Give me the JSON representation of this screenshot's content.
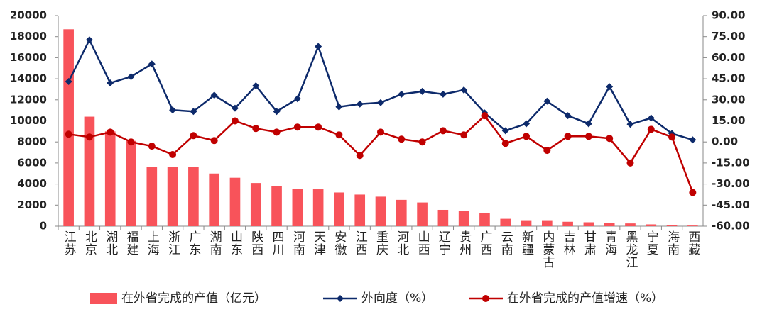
{
  "chart_data": {
    "type": "combo",
    "categories": [
      "江苏",
      "北京",
      "湖北",
      "福建",
      "上海",
      "浙江",
      "广东",
      "湖南",
      "山东",
      "陕西",
      "四川",
      "河南",
      "天津",
      "安徽",
      "江西",
      "重庆",
      "河北",
      "山西",
      "辽宁",
      "贵州",
      "广西",
      "云南",
      "新疆",
      "内蒙古",
      "吉林",
      "甘肃",
      "青海",
      "黑龙江",
      "宁夏",
      "海南",
      "西藏"
    ],
    "series": [
      {
        "name": "在外省完成的产值（亿元）",
        "type": "bar",
        "color": "#f8535a",
        "values": [
          18700,
          10400,
          9000,
          8100,
          5600,
          5600,
          5600,
          5000,
          4600,
          4100,
          3800,
          3550,
          3500,
          3200,
          3000,
          2800,
          2500,
          2250,
          1550,
          1480,
          1280,
          700,
          500,
          500,
          420,
          370,
          320,
          260,
          170,
          100,
          60
        ]
      },
      {
        "name": "外向度（%）",
        "type": "line",
        "axis": "y2",
        "marker": "diamond",
        "color": "#0d2a6b",
        "values": [
          43,
          72.7,
          42,
          46.5,
          55.5,
          22.7,
          21.7,
          33.3,
          24,
          40,
          21.7,
          30.8,
          68,
          25,
          27,
          28,
          34,
          36,
          34,
          37,
          20.7,
          8,
          13,
          29,
          18.7,
          13,
          39.4,
          12.6,
          17,
          6,
          1.5
        ]
      },
      {
        "name": "在外省完成的产值增速（%）",
        "type": "line",
        "axis": "y2",
        "marker": "circle",
        "color": "#c00000",
        "values": [
          5.5,
          3.5,
          7,
          0,
          -3,
          -9,
          4.5,
          1,
          15,
          9.6,
          7,
          10.6,
          10.6,
          5,
          -9.6,
          7,
          2,
          0,
          8,
          5,
          18.7,
          -1,
          4,
          -6,
          4,
          4,
          2.5,
          -15,
          9,
          3.5,
          -36
        ]
      }
    ],
    "ylim": [
      0,
      20000
    ],
    "yticks": [
      0,
      2000,
      4000,
      6000,
      8000,
      10000,
      12000,
      14000,
      16000,
      18000,
      20000
    ],
    "y2lim": [
      -60,
      90
    ],
    "y2ticks": [
      {
        "value": -60,
        "label": "-60.00"
      },
      {
        "value": -45,
        "label": "-45.00"
      },
      {
        "value": -30,
        "label": "-30.00"
      },
      {
        "value": -15,
        "label": "-15.00"
      },
      {
        "value": 0,
        "label": "0.00"
      },
      {
        "value": 15,
        "label": "15.00"
      },
      {
        "value": 30,
        "label": "30.00"
      },
      {
        "value": 45,
        "label": "45.00"
      },
      {
        "value": 60,
        "label": "60.00"
      },
      {
        "value": 75,
        "label": "75.00"
      },
      {
        "value": 90,
        "label": "90.00"
      }
    ],
    "grid": false,
    "legend": "bottom"
  }
}
